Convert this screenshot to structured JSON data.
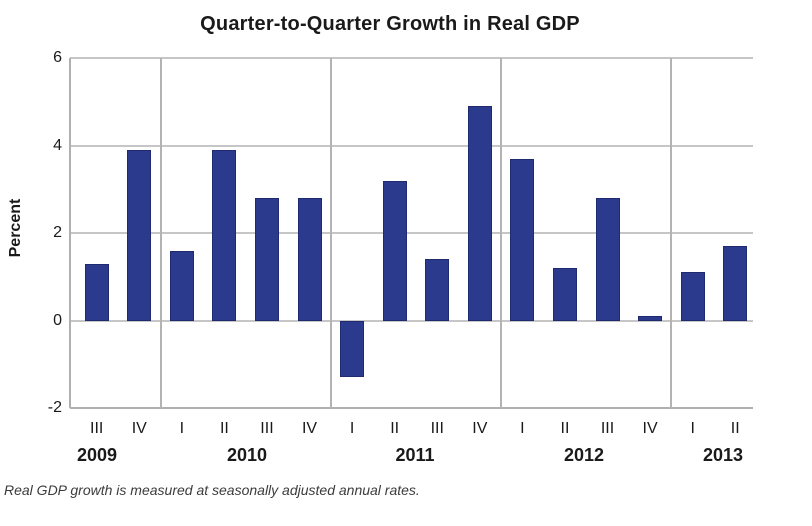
{
  "chart_data": {
    "type": "bar",
    "title": "Quarter-to-Quarter Growth in Real GDP",
    "ylabel": "Percent",
    "footnote": "Real GDP growth is measured at seasonally adjusted annual rates.",
    "ylim": [
      -2,
      6
    ],
    "yticks": [
      6,
      4,
      2,
      0,
      -2
    ],
    "grid": "horizontal gridlines on, vertical separators between year groups, no right border",
    "legend": "none",
    "bar_color": "#2b3a8c",
    "bar_edge_color": "#1f2b6e",
    "gridline_color": "#c6c6c6",
    "axis_color": "#b0b0b0",
    "separator_color": "#b3b3b3",
    "groups": [
      {
        "year": "2009",
        "quarters": [
          "III",
          "IV"
        ],
        "values": [
          1.3,
          3.9
        ]
      },
      {
        "year": "2010",
        "quarters": [
          "I",
          "II",
          "III",
          "IV"
        ],
        "values": [
          1.6,
          3.9,
          2.8,
          2.8
        ]
      },
      {
        "year": "2011",
        "quarters": [
          "I",
          "II",
          "III",
          "IV"
        ],
        "values": [
          -1.3,
          3.2,
          1.4,
          4.9
        ]
      },
      {
        "year": "2012",
        "quarters": [
          "I",
          "II",
          "III",
          "IV"
        ],
        "values": [
          3.7,
          1.2,
          2.8,
          0.1
        ]
      },
      {
        "year": "2013",
        "quarters": [
          "I",
          "II"
        ],
        "values": [
          1.1,
          1.7
        ]
      }
    ]
  }
}
